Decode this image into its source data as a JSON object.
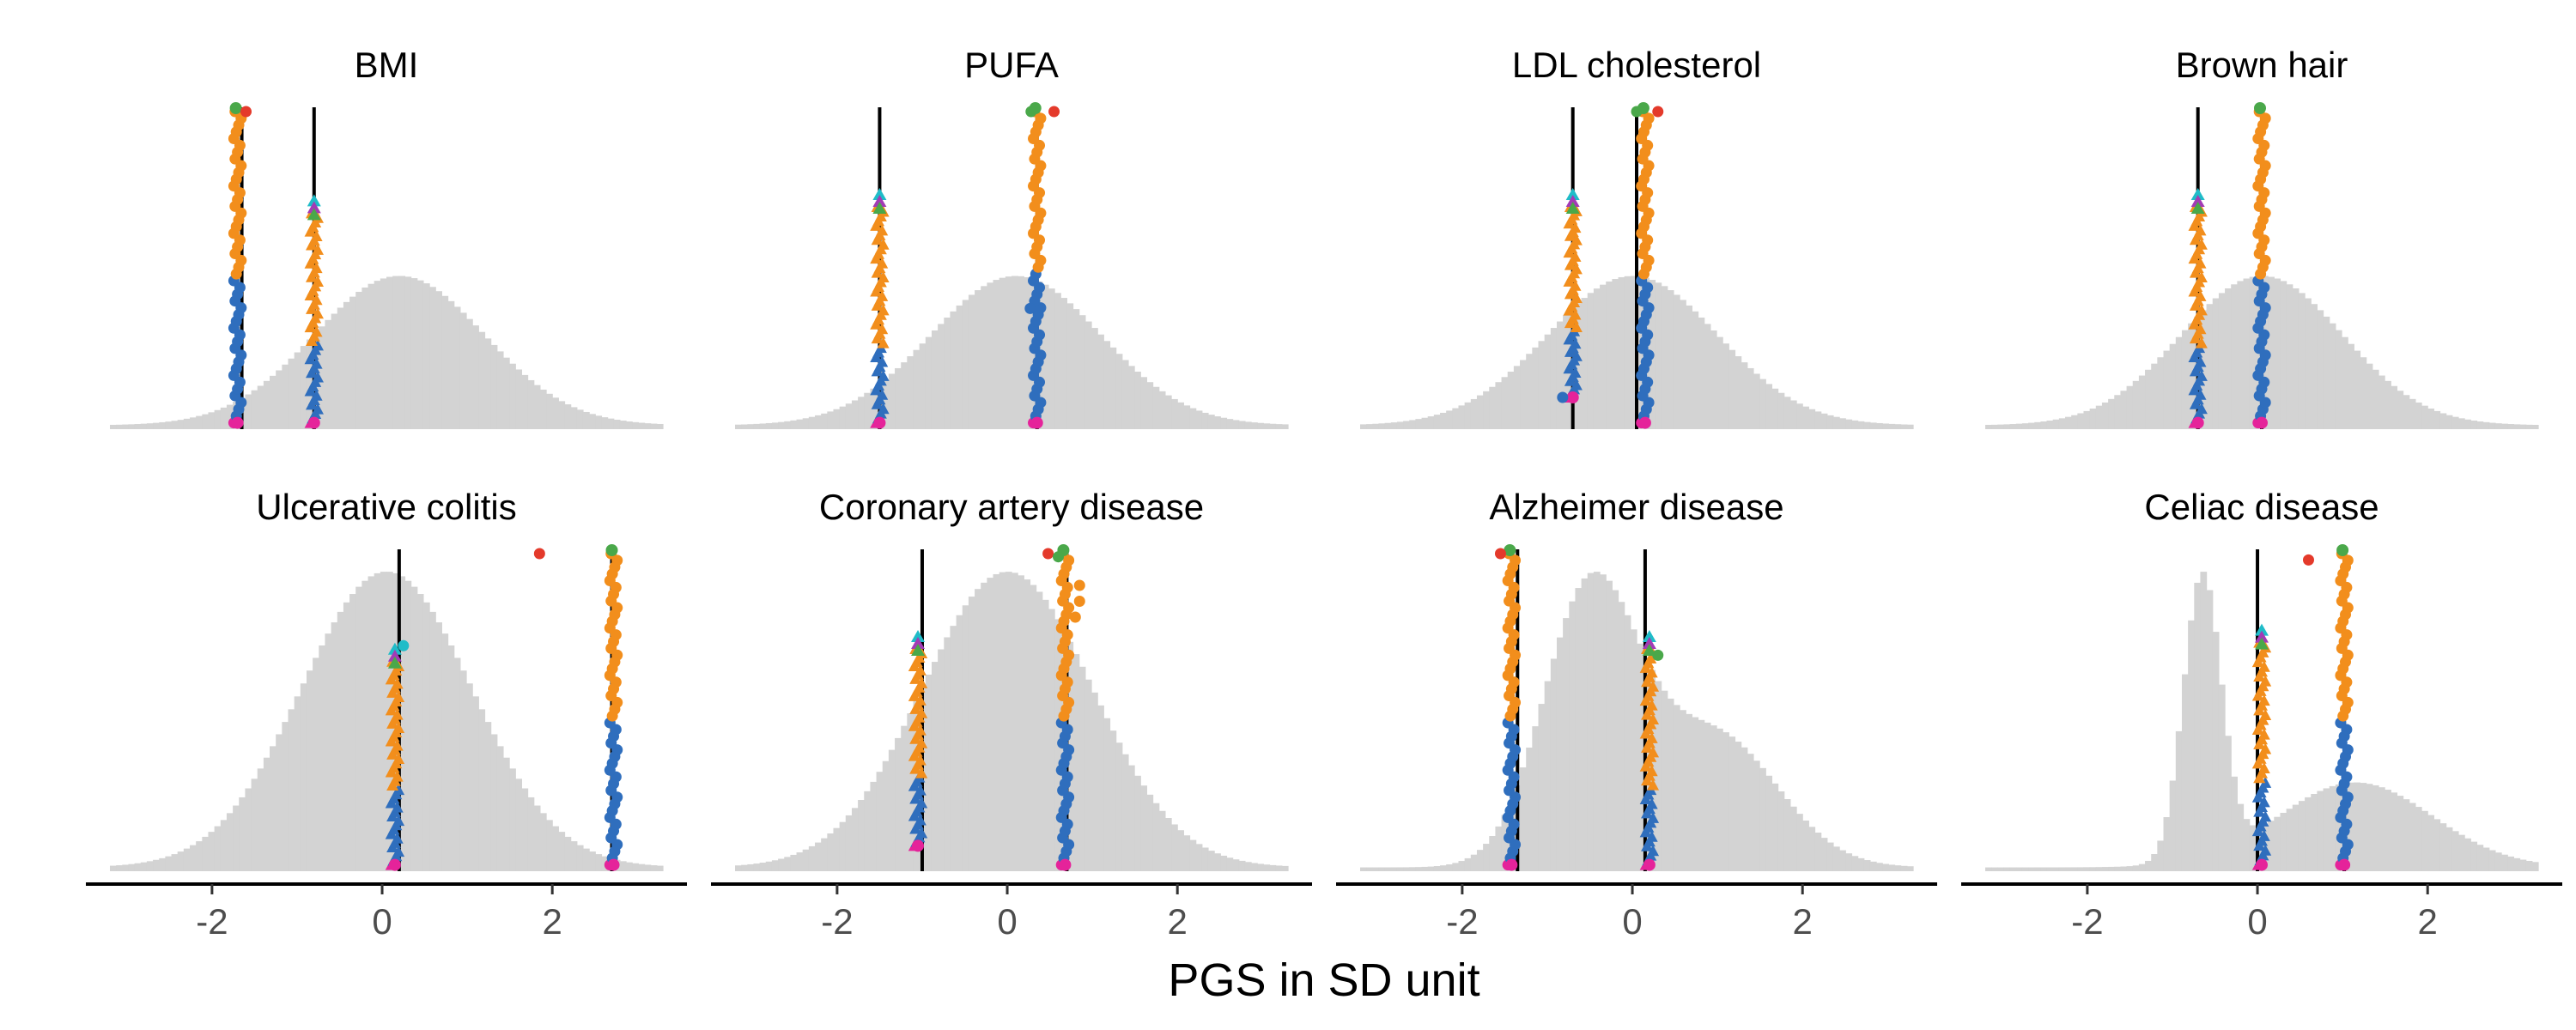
{
  "xlabel": "PGS in SD unit",
  "xlim": [
    -3.2,
    3.3
  ],
  "xticks": [
    -2,
    0,
    2
  ],
  "xtick_labels": [
    "-2",
    "0",
    "2"
  ],
  "colors": {
    "histogram": "#d3d3d3",
    "vline": "#000000",
    "orange": "#f28e1c",
    "blue": "#2f6ebd",
    "magenta": "#e5239a",
    "purple": "#a33bb5",
    "cyan": "#1fbcc8",
    "green": "#4aa84a",
    "red": "#e43a2b"
  },
  "chart_data": [
    {
      "type": "histogram",
      "title": "BMI",
      "distribution": {
        "kind": "normal",
        "mean": 0.2,
        "sd": 1.0
      },
      "vlines": [
        -1.65,
        -0.8
      ],
      "columns": [
        {
          "x": -1.7,
          "y_bottom": 0.02,
          "y_top": 1.0,
          "split": 0.47,
          "markers": "dots"
        },
        {
          "x": -0.8,
          "y_bottom": 0.02,
          "y_top": 0.68,
          "split": 0.37,
          "markers": "triangles"
        }
      ],
      "extra_points": [
        {
          "x": -1.6,
          "y": 1.0,
          "color": "red"
        }
      ],
      "columns_top": 1.0
    },
    {
      "type": "histogram",
      "title": "PUFA",
      "distribution": {
        "kind": "normal",
        "mean": 0.1,
        "sd": 1.0
      },
      "vlines": [
        -1.5,
        0.35
      ],
      "columns": [
        {
          "x": -1.5,
          "y_bottom": 0.02,
          "y_top": 0.7,
          "split": 0.36,
          "markers": "triangles"
        },
        {
          "x": 0.35,
          "y_bottom": 0.02,
          "y_top": 1.0,
          "split": 0.5,
          "markers": "dots"
        }
      ],
      "extra_points": [
        {
          "x": 0.28,
          "y": 1.0,
          "color": "green"
        },
        {
          "x": 0.55,
          "y": 1.0,
          "color": "red"
        },
        {
          "x": 0.27,
          "y": 0.38,
          "color": "blue"
        }
      ],
      "columns_top": 1.0
    },
    {
      "type": "histogram",
      "title": "LDL cholesterol",
      "distribution": {
        "kind": "normal",
        "mean": 0.0,
        "sd": 1.0
      },
      "vlines": [
        -0.7,
        0.05
      ],
      "columns": [
        {
          "x": -0.7,
          "y_bottom": 0.1,
          "y_top": 0.7,
          "split": 0.36,
          "markers": "triangles"
        },
        {
          "x": 0.15,
          "y_bottom": 0.02,
          "y_top": 1.0,
          "split": 0.47,
          "markers": "dots"
        }
      ],
      "extra_points": [
        {
          "x": 0.05,
          "y": 1.0,
          "color": "green"
        },
        {
          "x": 0.3,
          "y": 1.0,
          "color": "red"
        },
        {
          "x": -0.82,
          "y": 0.1,
          "color": "blue"
        }
      ],
      "columns_top": 1.0
    },
    {
      "type": "histogram",
      "title": "Brown hair",
      "distribution": {
        "kind": "normal",
        "mean": 0.05,
        "sd": 0.95
      },
      "vlines": [
        -0.7,
        0.05
      ],
      "columns": [
        {
          "x": -0.7,
          "y_bottom": 0.02,
          "y_top": 0.7,
          "split": 0.36,
          "markers": "triangles"
        },
        {
          "x": 0.05,
          "y_bottom": 0.02,
          "y_top": 1.0,
          "split": 0.47,
          "markers": "dots"
        }
      ],
      "extra_points": [],
      "columns_top": 1.0
    },
    {
      "type": "histogram",
      "title": "Ulcerative colitis",
      "distribution": {
        "kind": "normal",
        "mean": 0.05,
        "sd": 1.0
      },
      "vlines": [
        0.2,
        2.7
      ],
      "columns": [
        {
          "x": 0.15,
          "y_bottom": 0.02,
          "y_top": 0.66,
          "split": 0.37,
          "markers": "triangles"
        },
        {
          "x": 2.72,
          "y_bottom": 0.02,
          "y_top": 1.0,
          "split": 0.47,
          "markers": "dots"
        }
      ],
      "extra_points": [
        {
          "x": 1.85,
          "y": 1.0,
          "color": "red"
        },
        {
          "x": 0.25,
          "y": 0.71,
          "color": "cyan"
        }
      ],
      "columns_top": 1.0
    },
    {
      "type": "histogram",
      "title": "Coronary artery disease",
      "distribution": {
        "kind": "normal",
        "mean": 0.0,
        "sd": 1.0
      },
      "vlines": [
        -1.0,
        0.7
      ],
      "columns": [
        {
          "x": -1.05,
          "y_bottom": 0.08,
          "y_top": 0.7,
          "split": 0.36,
          "markers": "triangles"
        },
        {
          "x": 0.68,
          "y_bottom": 0.02,
          "y_top": 1.0,
          "split": 0.47,
          "markers": "dots"
        }
      ],
      "extra_points": [
        {
          "x": 0.48,
          "y": 1.0,
          "color": "red"
        },
        {
          "x": 0.6,
          "y": 0.99,
          "color": "green"
        },
        {
          "x": 0.85,
          "y": 0.9,
          "color": "orange"
        },
        {
          "x": 0.85,
          "y": 0.85,
          "color": "orange"
        },
        {
          "x": 0.8,
          "y": 0.8,
          "color": "orange"
        }
      ],
      "columns_top": 1.0
    },
    {
      "type": "histogram",
      "title": "Alzheimer disease",
      "distribution": {
        "kind": "bimodal",
        "components": [
          {
            "mean": -0.5,
            "sd": 0.55,
            "w": 0.6
          },
          {
            "mean": 0.95,
            "sd": 0.75,
            "w": 0.4
          }
        ]
      },
      "vlines": [
        -1.35,
        0.15
      ],
      "columns": [
        {
          "x": -1.42,
          "y_bottom": 0.02,
          "y_top": 1.0,
          "split": 0.47,
          "markers": "dots"
        },
        {
          "x": 0.2,
          "y_bottom": 0.02,
          "y_top": 0.7,
          "split": 0.36,
          "markers": "triangles"
        }
      ],
      "extra_points": [
        {
          "x": -1.55,
          "y": 1.0,
          "color": "red"
        },
        {
          "x": 0.3,
          "y": 0.68,
          "color": "green"
        }
      ],
      "columns_top": 1.0
    },
    {
      "type": "histogram",
      "title": "Celiac disease",
      "distribution": {
        "kind": "bimodal",
        "components": [
          {
            "mean": -0.65,
            "sd": 0.22,
            "w": 0.45
          },
          {
            "mean": 1.15,
            "sd": 0.9,
            "w": 0.55
          }
        ]
      },
      "vlines": [
        0.0,
        1.02
      ],
      "columns": [
        {
          "x": 0.05,
          "y_bottom": 0.02,
          "y_top": 0.72,
          "split": 0.37,
          "markers": "triangles"
        },
        {
          "x": 1.02,
          "y_bottom": 0.02,
          "y_top": 1.0,
          "split": 0.47,
          "markers": "dots"
        }
      ],
      "extra_points": [
        {
          "x": 0.6,
          "y": 0.98,
          "color": "red"
        }
      ],
      "columns_top": 1.0
    }
  ]
}
